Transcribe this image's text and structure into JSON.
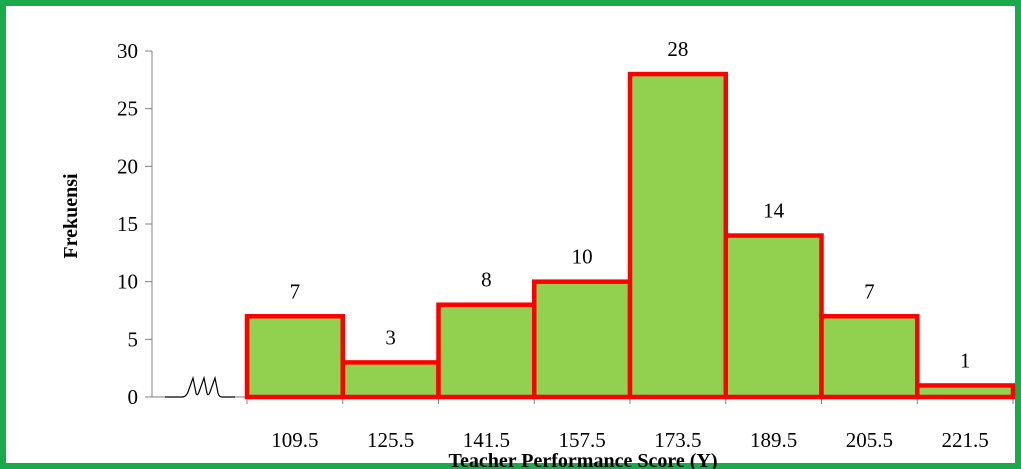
{
  "chart_data": {
    "type": "bar",
    "title": "",
    "xlabel": "Teacher Performance Score (Y)",
    "ylabel": "Frekuensi",
    "ylim": [
      0,
      30
    ],
    "yticks": [
      0,
      5,
      10,
      15,
      20,
      25,
      30
    ],
    "categories": [
      "109.5",
      "125.5",
      "141.5",
      "157.5",
      "173.5",
      "189.5",
      "205.5",
      "221.5"
    ],
    "values": [
      7,
      3,
      8,
      10,
      28,
      14,
      7,
      1
    ],
    "bar_fill": "#92d050",
    "bar_stroke": "#ff0000",
    "frame_color": "#1aaa4b",
    "grid": false,
    "legend": "none",
    "axis_break": true
  }
}
